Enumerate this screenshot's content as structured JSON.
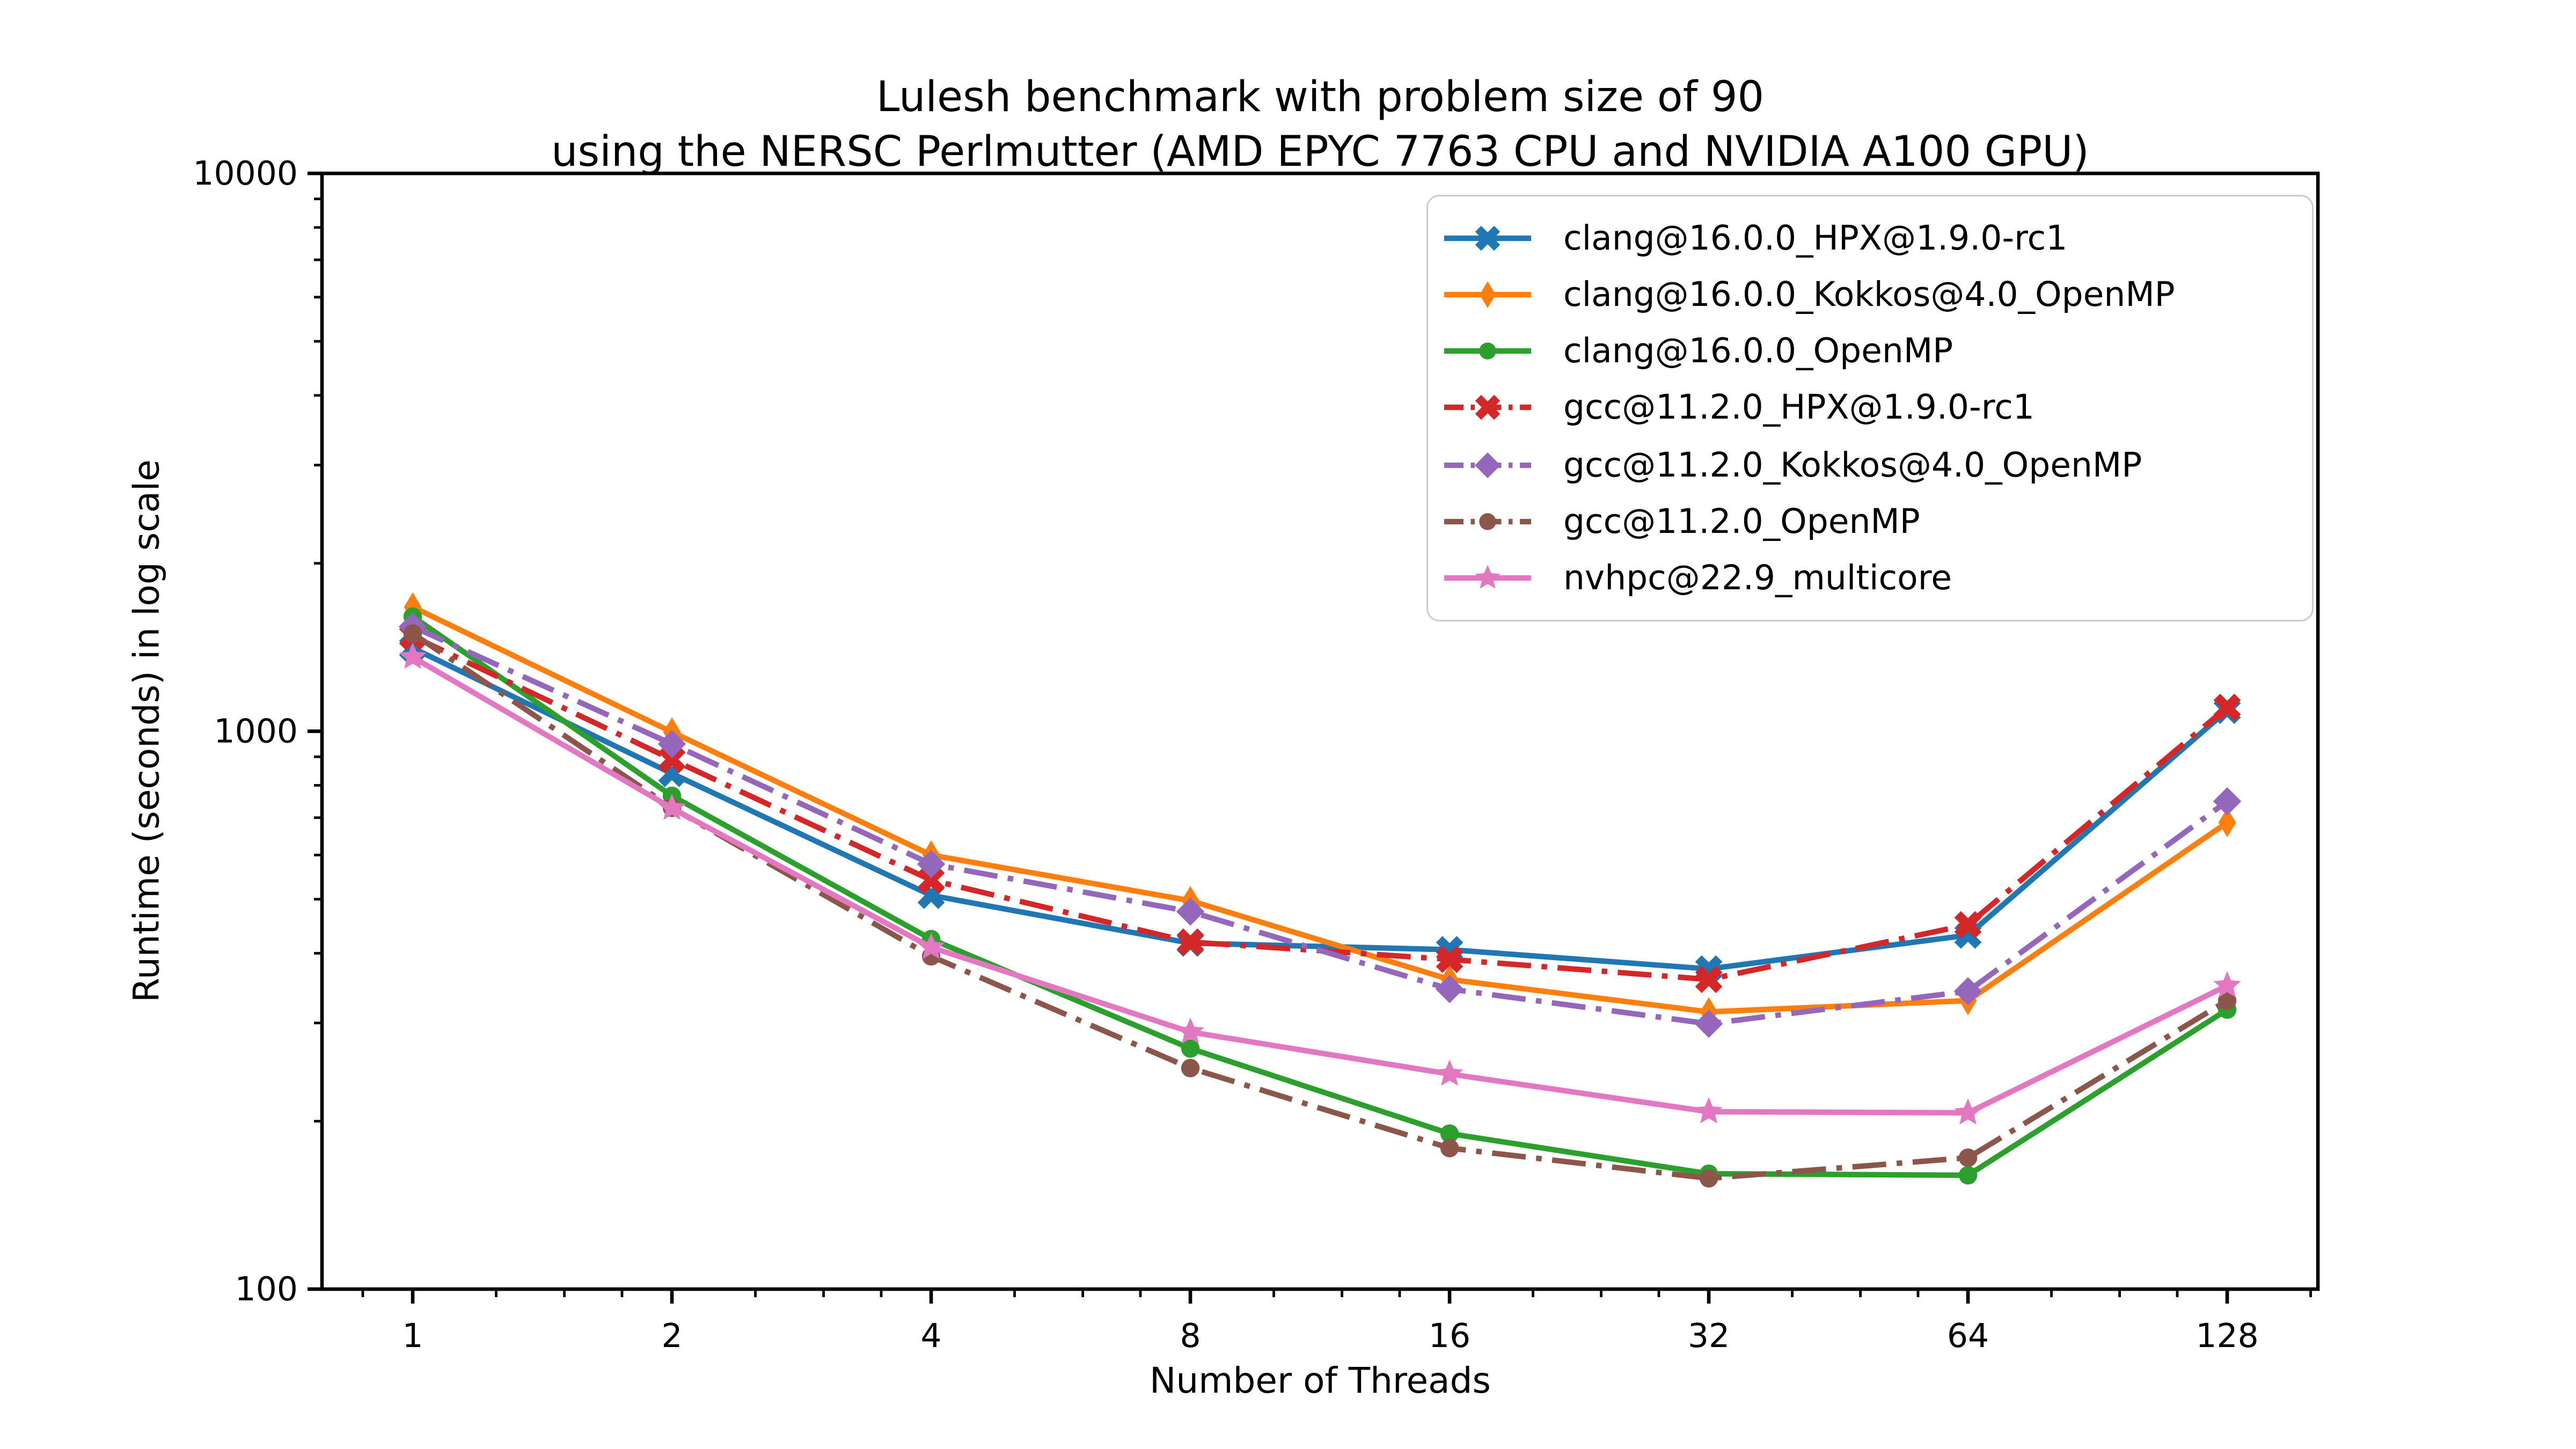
{
  "chart_data": {
    "type": "line",
    "title_line1": "Lulesh benchmark with problem size of 90",
    "title_line2": "using the NERSC Perlmutter (AMD EPYC 7763 CPU and NVIDIA A100 GPU)",
    "xlabel": "Number of Threads",
    "ylabel": "Runtime (seconds) in log scale",
    "xscale": "log2",
    "yscale": "log10",
    "grid": false,
    "legend_position": "upper right",
    "x": [
      1,
      2,
      4,
      8,
      16,
      32,
      64,
      128
    ],
    "xticklabels": [
      "1",
      "2",
      "4",
      "8",
      "16",
      "32",
      "64",
      "128"
    ],
    "x_minor_ticks": [
      0.875,
      1.25,
      1.5,
      1.75,
      2.5,
      3,
      3.5,
      5,
      6,
      7,
      10,
      12,
      14,
      20,
      24,
      28,
      40,
      48,
      56,
      80,
      96,
      112,
      160
    ],
    "xlim_log2": [
      -0.35,
      7.35
    ],
    "ylim": [
      100,
      10000
    ],
    "yticks": [
      100,
      1000,
      10000
    ],
    "yticklabels": [
      "100",
      "1000",
      "10000"
    ],
    "y_minor_ticks": [
      200,
      300,
      400,
      500,
      600,
      700,
      800,
      900,
      2000,
      3000,
      4000,
      5000,
      6000,
      7000,
      8000,
      9000
    ],
    "series": [
      {
        "name": "clang@16.0.0_HPX@1.9.0-rc1",
        "color": "#1f77b4",
        "marker": "X",
        "linestyle": "solid",
        "values": [
          1410,
          840,
          508,
          417,
          406,
          375,
          431,
          1090
        ]
      },
      {
        "name": "clang@16.0.0_Kokkos@4.0_OpenMP",
        "color": "#ff7f0e",
        "marker": "thin-diamond",
        "linestyle": "solid",
        "values": [
          1670,
          997,
          600,
          497,
          359,
          314,
          329,
          686
        ]
      },
      {
        "name": "clang@16.0.0_OpenMP",
        "color": "#2ca02c",
        "marker": "circle",
        "linestyle": "solid",
        "values": [
          1605,
          766,
          424,
          270,
          190,
          161,
          160,
          317
        ]
      },
      {
        "name": "gcc@11.2.0_HPX@1.9.0-rc1",
        "color": "#d62728",
        "marker": "X",
        "linestyle": "dashdot",
        "values": [
          1480,
          890,
          541,
          419,
          390,
          359,
          450,
          1104
        ]
      },
      {
        "name": "gcc@11.2.0_Kokkos@4.0_OpenMP",
        "color": "#9467bd",
        "marker": "diamond",
        "linestyle": "dashdot",
        "values": [
          1540,
          949,
          578,
          475,
          345,
          299,
          342,
          749
        ]
      },
      {
        "name": "gcc@11.2.0_OpenMP",
        "color": "#8c564b",
        "marker": "circle",
        "linestyle": "dashdot",
        "values": [
          1497,
          729,
          395,
          249,
          179,
          158,
          172,
          329
        ]
      },
      {
        "name": "nvhpc@22.9_multicore",
        "color": "#e377c2",
        "marker": "star",
        "linestyle": "solid",
        "values": [
          1358,
          728,
          410,
          289,
          243,
          208,
          207,
          350
        ]
      }
    ],
    "axis_color": "#000000",
    "background_color": "#ffffff"
  }
}
